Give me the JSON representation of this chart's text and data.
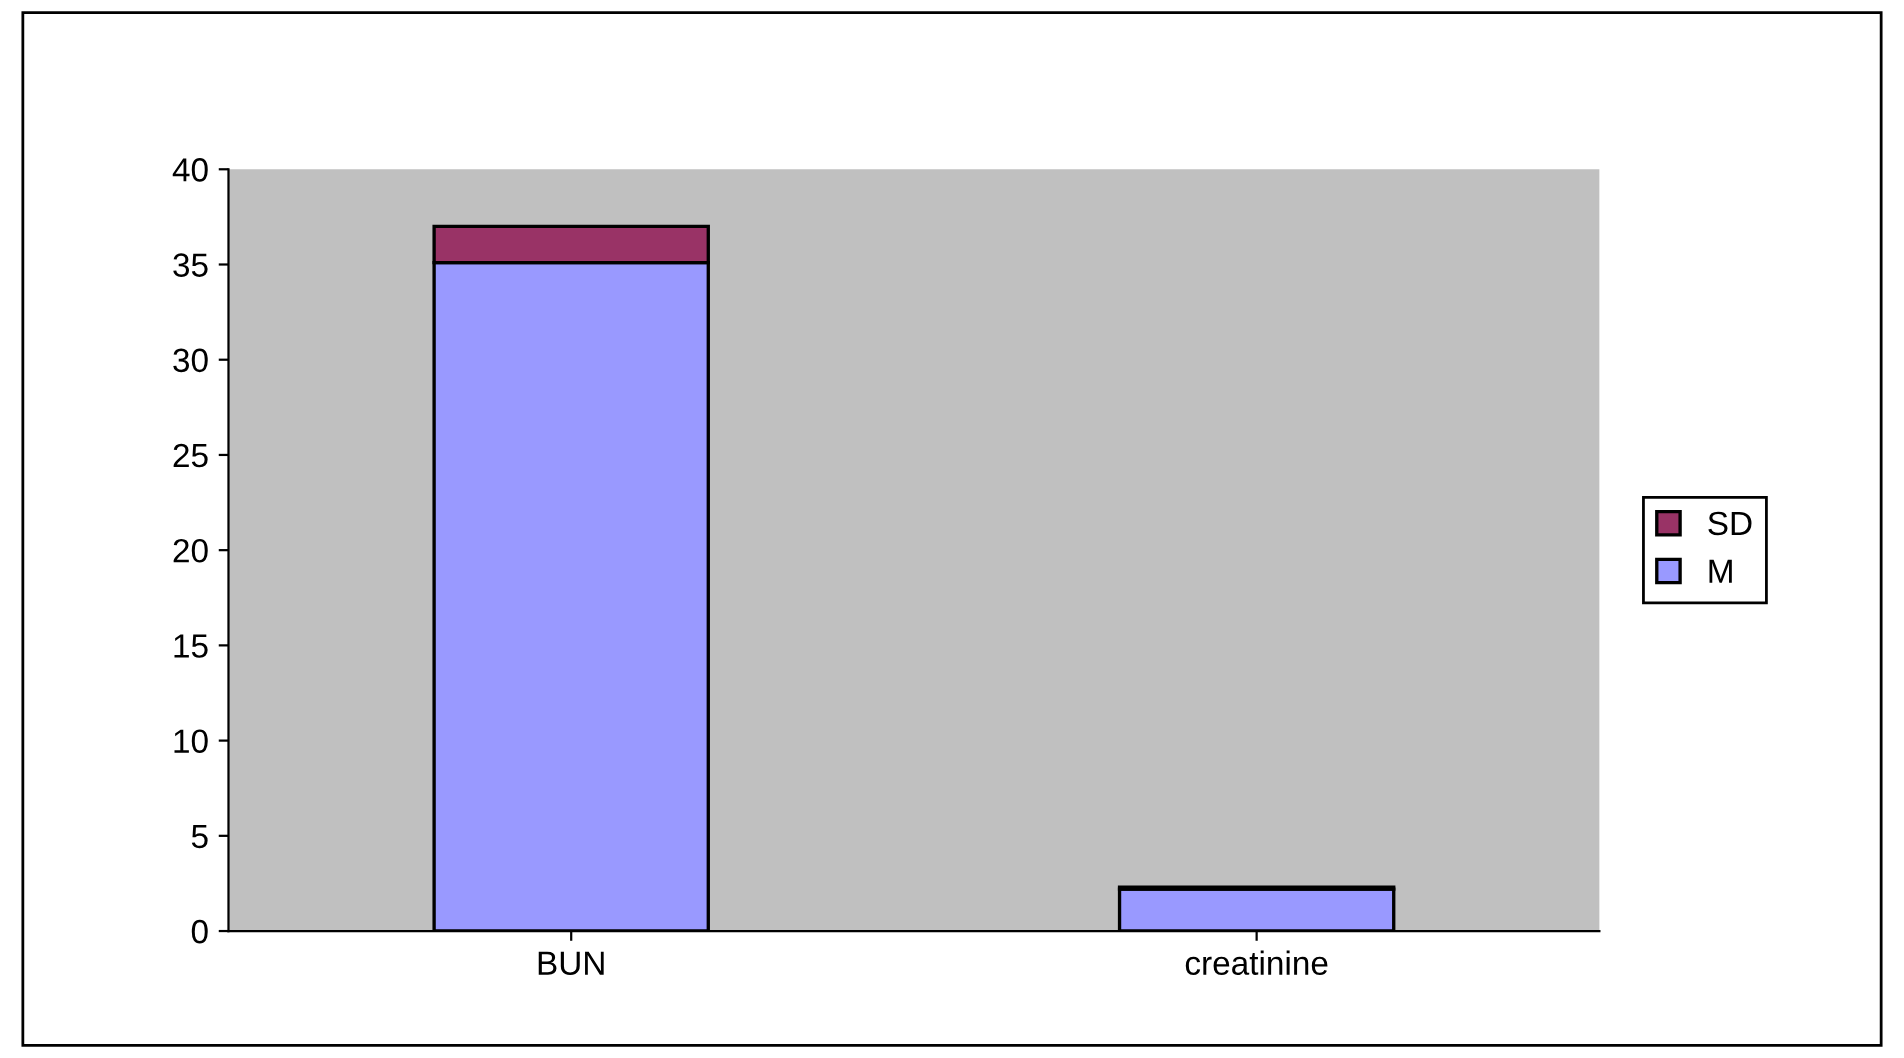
{
  "chart_data": {
    "type": "bar",
    "stacked": true,
    "categories": [
      "BUN",
      "creatinine"
    ],
    "series": [
      {
        "name": "M",
        "color": "#9999ff",
        "values": [
          35.1,
          2.2
        ]
      },
      {
        "name": "SD",
        "color": "#993366",
        "values": [
          1.9,
          0.1
        ]
      }
    ],
    "ylim": [
      0,
      40
    ],
    "yticks": [
      0,
      5,
      10,
      15,
      20,
      25,
      30,
      35,
      40
    ],
    "grid": false,
    "legend": "right"
  }
}
